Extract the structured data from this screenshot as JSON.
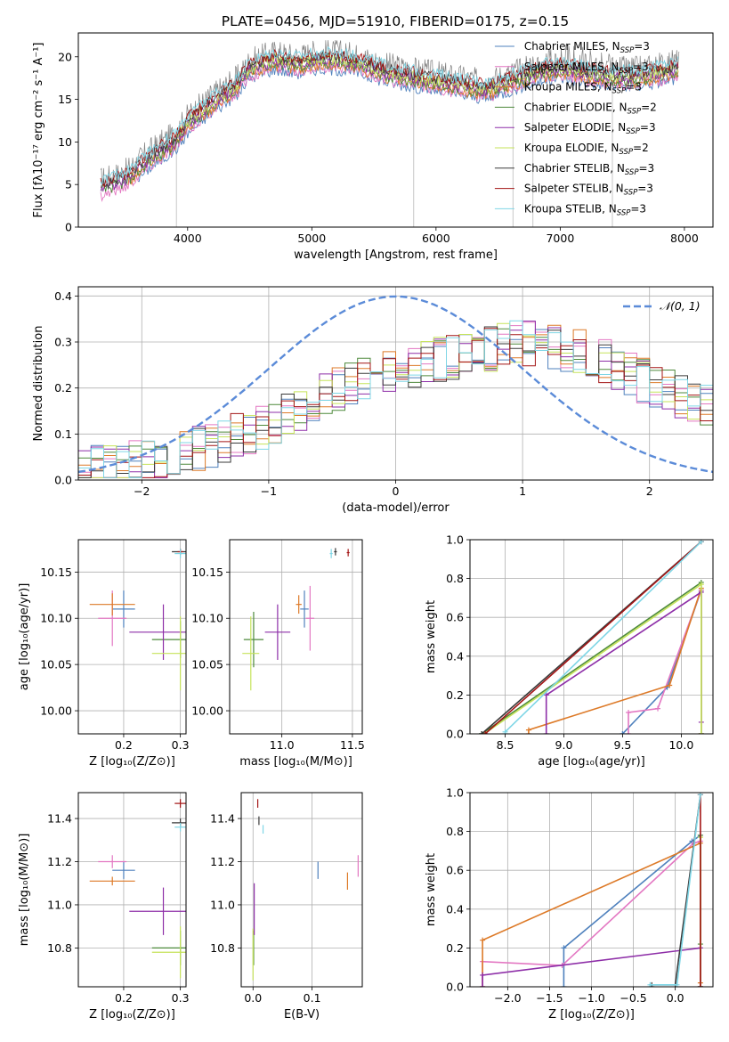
{
  "figure": {
    "title": "PLATE=0456, MJD=51910, FIBERID=0175, z=0.15"
  },
  "model_colors": {
    "Chabrier MILES": "#4f81bd",
    "Salpeter MILES": "#e377c2",
    "Kroupa MILES": "#dd7a28",
    "Chabrier ELODIE": "#4e8a3c",
    "Salpeter ELODIE": "#8e2fa8",
    "Kroupa ELODIE": "#c6e35a",
    "Chabrier STELIB": "#3a3a3a",
    "Salpeter STELIB": "#a31515",
    "Kroupa STELIB": "#7fd6e6",
    "data": "#808080",
    "gaussian": "#5b8bd8"
  },
  "chart_data": [
    {
      "id": "spectrum",
      "type": "line",
      "title": "PLATE=0456, MJD=51910, FIBERID=0175, z=0.15",
      "xlabel": "wavelength [Angstrom, rest frame]",
      "ylabel": "Flux [fλ10⁻¹⁷ erg cm⁻² s⁻¹ A⁻¹]",
      "xlim": [
        3120,
        8230
      ],
      "ylim": [
        0,
        22.8
      ],
      "xticks": [
        4000,
        5000,
        6000,
        7000,
        8000
      ],
      "yticks": [
        0,
        5,
        10,
        15,
        20
      ],
      "grid": false,
      "legend_position": "top-right",
      "legend": [
        {
          "model": "Chabrier MILES",
          "label": "Chabrier MILES, N",
          "sub": "SSP",
          "tail": "=3"
        },
        {
          "model": "Salpeter MILES",
          "label": "Salpeter MILES, N",
          "sub": "SSP",
          "tail": "=3"
        },
        {
          "model": "Kroupa MILES",
          "label": "Kroupa MILES, N",
          "sub": "SSP",
          "tail": "=3"
        },
        {
          "model": "Chabrier ELODIE",
          "label": "Chabrier ELODIE, N",
          "sub": "SSP",
          "tail": "=2"
        },
        {
          "model": "Salpeter ELODIE",
          "label": "Salpeter ELODIE, N",
          "sub": "SSP",
          "tail": "=3"
        },
        {
          "model": "Kroupa ELODIE",
          "label": "Kroupa ELODIE, N",
          "sub": "SSP",
          "tail": "=2"
        },
        {
          "model": "Chabrier STELIB",
          "label": "Chabrier STELIB, N",
          "sub": "SSP",
          "tail": "=3"
        },
        {
          "model": "Salpeter STELIB",
          "label": "Salpeter STELIB, N",
          "sub": "SSP",
          "tail": "=3"
        },
        {
          "model": "Kroupa STELIB",
          "label": "Kroupa STELIB, N",
          "sub": "SSP",
          "tail": "=3"
        }
      ],
      "data_envelope": {
        "x": [
          3300,
          3500,
          3700,
          3900,
          4000,
          4200,
          4400,
          4500,
          4700,
          4900,
          5000,
          5200,
          5400,
          5600,
          5800,
          6000,
          6200,
          6400,
          6600,
          6800,
          7000,
          7200,
          7400,
          7600,
          7800,
          7950
        ],
        "y": [
          5.5,
          6.5,
          9.0,
          11.0,
          13.0,
          15.5,
          17.5,
          19.5,
          20.5,
          20.0,
          20.5,
          20.5,
          20.0,
          19.0,
          18.5,
          18.0,
          17.5,
          17.0,
          18.0,
          19.0,
          19.5,
          19.0,
          18.5,
          18.5,
          19.0,
          19.5
        ]
      },
      "data_dropouts_x": [
        3910,
        5820,
        6620,
        6780,
        7420
      ]
    },
    {
      "id": "residuals",
      "type": "step",
      "xlabel": "(data-model)/error",
      "ylabel": "Normed distribution",
      "xlim": [
        -2.5,
        2.5
      ],
      "ylim": [
        0,
        0.42
      ],
      "xticks": [
        -2,
        -1,
        0,
        1,
        2
      ],
      "yticks": [
        0.0,
        0.1,
        0.2,
        0.3,
        0.4
      ],
      "grid": true,
      "legend_position": "top-right",
      "gaussian_label": "𝒩(0, 1)",
      "bin_width": 0.1,
      "envelope": {
        "x": [
          -2.5,
          -2.0,
          -1.5,
          -1.0,
          -0.5,
          0.0,
          0.5,
          1.0,
          1.5,
          2.0,
          2.5
        ],
        "y": [
          0.02,
          0.04,
          0.07,
          0.12,
          0.19,
          0.24,
          0.27,
          0.3,
          0.28,
          0.21,
          0.16
        ]
      }
    },
    {
      "id": "age-vs-Z",
      "type": "errorbar",
      "xlabel": "Z [log₁₀(Z/Z⊙)]",
      "ylabel": "age  [log₁₀(age/yr)]",
      "xlim": [
        0.12,
        0.31
      ],
      "ylim": [
        9.975,
        10.185
      ],
      "xticks": [
        0.2,
        0.3
      ],
      "yticks": [
        10.0,
        10.05,
        10.1,
        10.15
      ],
      "grid": true,
      "points": [
        {
          "model": "Chabrier MILES",
          "x": 0.2,
          "y": 10.11,
          "xerr": 0.02,
          "yerr": 0.02
        },
        {
          "model": "Salpeter MILES",
          "x": 0.18,
          "y": 10.1,
          "xerr": 0.025,
          "yerr": 0.03
        },
        {
          "model": "Kroupa MILES",
          "x": 0.18,
          "y": 10.115,
          "xerr": 0.04,
          "yerr": 0.012
        },
        {
          "model": "Chabrier ELODIE",
          "x": 0.3,
          "y": 10.077,
          "xerr": 0.05,
          "yerr": 0.02
        },
        {
          "model": "Salpeter ELODIE",
          "x": 0.27,
          "y": 10.085,
          "xerr": 0.06,
          "yerr": 0.03
        },
        {
          "model": "Kroupa ELODIE",
          "x": 0.3,
          "y": 10.062,
          "xerr": 0.05,
          "yerr": 0.04
        },
        {
          "model": "Chabrier STELIB",
          "x": 0.3,
          "y": 10.172,
          "xerr": 0.015,
          "yerr": 0.003
        },
        {
          "model": "Salpeter STELIB",
          "x": 0.3,
          "y": 10.172,
          "xerr": 0.005,
          "yerr": 0.003
        },
        {
          "model": "Kroupa STELIB",
          "x": 0.3,
          "y": 10.17,
          "xerr": 0.01,
          "yerr": 0.005
        }
      ]
    },
    {
      "id": "age-vs-mass",
      "type": "errorbar",
      "xlabel": "mass [log₁₀(M/M⊙)]",
      "xlim": [
        10.63,
        11.57
      ],
      "ylim": [
        9.975,
        10.185
      ],
      "xticks": [
        11.0,
        11.5
      ],
      "yticks": [
        10.0,
        10.05,
        10.1,
        10.15
      ],
      "grid": true,
      "points": [
        {
          "model": "Chabrier MILES",
          "x": 11.16,
          "y": 10.11,
          "xerr": 0.03,
          "yerr": 0.02
        },
        {
          "model": "Salpeter MILES",
          "x": 11.2,
          "y": 10.1,
          "xerr": 0.03,
          "yerr": 0.035
        },
        {
          "model": "Kroupa MILES",
          "x": 11.12,
          "y": 10.115,
          "xerr": 0.02,
          "yerr": 0.01
        },
        {
          "model": "Chabrier ELODIE",
          "x": 10.8,
          "y": 10.077,
          "xerr": 0.07,
          "yerr": 0.03
        },
        {
          "model": "Salpeter ELODIE",
          "x": 10.97,
          "y": 10.085,
          "xerr": 0.09,
          "yerr": 0.03
        },
        {
          "model": "Kroupa ELODIE",
          "x": 10.78,
          "y": 10.062,
          "xerr": 0.06,
          "yerr": 0.04
        },
        {
          "model": "Chabrier STELIB",
          "x": 11.38,
          "y": 10.172,
          "xerr": 0.01,
          "yerr": 0.004
        },
        {
          "model": "Salpeter STELIB",
          "x": 11.47,
          "y": 10.171,
          "xerr": 0.01,
          "yerr": 0.004
        },
        {
          "model": "Kroupa STELIB",
          "x": 11.35,
          "y": 10.17,
          "xerr": 0.01,
          "yerr": 0.005
        }
      ]
    },
    {
      "id": "age-cumulative",
      "type": "line",
      "xlabel": "age  [log₁₀(age/yr)]",
      "ylabel": "mass weight",
      "xlim": [
        8.2,
        10.27
      ],
      "ylim": [
        0,
        1.0
      ],
      "xticks": [
        8.5,
        9.0,
        9.5,
        10.0
      ],
      "yticks": [
        0.0,
        0.2,
        0.4,
        0.6,
        0.8,
        1.0
      ],
      "grid": true,
      "series": [
        {
          "model": "Chabrier MILES",
          "x": [
            9.5,
            9.5,
            9.88,
            10.17,
            10.17
          ],
          "y": [
            0.0,
            0.0,
            0.24,
            0.74,
            0.0
          ]
        },
        {
          "model": "Salpeter MILES",
          "x": [
            9.55,
            9.55,
            9.8,
            10.17,
            10.17
          ],
          "y": [
            0.0,
            0.11,
            0.13,
            0.74,
            0.0
          ]
        },
        {
          "model": "Kroupa MILES",
          "x": [
            8.7,
            8.7,
            9.9,
            10.17,
            10.17
          ],
          "y": [
            0.0,
            0.02,
            0.25,
            0.75,
            0.0
          ]
        },
        {
          "model": "Chabrier ELODIE",
          "x": [
            8.3,
            8.3,
            10.17,
            10.17
          ],
          "y": [
            0.0,
            0.0,
            0.78,
            0.0
          ]
        },
        {
          "model": "Salpeter ELODIE",
          "x": [
            8.85,
            8.85,
            10.17,
            10.17
          ],
          "y": [
            0.0,
            0.2,
            0.73,
            0.06
          ]
        },
        {
          "model": "Kroupa ELODIE",
          "x": [
            8.32,
            8.32,
            10.17,
            10.17
          ],
          "y": [
            0.0,
            0.0,
            0.77,
            0.0
          ]
        },
        {
          "model": "Chabrier STELIB",
          "x": [
            8.3,
            8.3,
            10.17
          ],
          "y": [
            0.0,
            0.0,
            0.99
          ]
        },
        {
          "model": "Salpeter STELIB",
          "x": [
            8.33,
            8.33,
            10.17
          ],
          "y": [
            0.0,
            0.0,
            0.99
          ]
        },
        {
          "model": "Kroupa STELIB",
          "x": [
            8.5,
            8.5,
            10.17
          ],
          "y": [
            0.0,
            0.01,
            0.99
          ]
        }
      ]
    },
    {
      "id": "mass-vs-Z",
      "type": "errorbar",
      "xlabel": "Z [log₁₀(Z/Z⊙)]",
      "ylabel": "mass [log₁₀(M/M⊙)]",
      "xlim": [
        0.12,
        0.31
      ],
      "ylim": [
        10.62,
        11.52
      ],
      "xticks": [
        0.2,
        0.3
      ],
      "yticks": [
        10.8,
        11.0,
        11.2,
        11.4
      ],
      "grid": true,
      "points": [
        {
          "model": "Chabrier MILES",
          "x": 0.2,
          "y": 11.16,
          "xerr": 0.02,
          "yerr": 0.04
        },
        {
          "model": "Salpeter MILES",
          "x": 0.18,
          "y": 11.2,
          "xerr": 0.025,
          "yerr": 0.03
        },
        {
          "model": "Kroupa MILES",
          "x": 0.18,
          "y": 11.11,
          "xerr": 0.04,
          "yerr": 0.02
        },
        {
          "model": "Chabrier ELODIE",
          "x": 0.3,
          "y": 10.8,
          "xerr": 0.05,
          "yerr": 0.08
        },
        {
          "model": "Salpeter ELODIE",
          "x": 0.27,
          "y": 10.97,
          "xerr": 0.06,
          "yerr": 0.11
        },
        {
          "model": "Kroupa ELODIE",
          "x": 0.3,
          "y": 10.78,
          "xerr": 0.05,
          "yerr": 0.12
        },
        {
          "model": "Chabrier STELIB",
          "x": 0.3,
          "y": 11.38,
          "xerr": 0.015,
          "yerr": 0.02
        },
        {
          "model": "Salpeter STELIB",
          "x": 0.3,
          "y": 11.47,
          "xerr": 0.01,
          "yerr": 0.02
        },
        {
          "model": "Kroupa STELIB",
          "x": 0.3,
          "y": 11.36,
          "xerr": 0.01,
          "yerr": 0.02
        }
      ]
    },
    {
      "id": "mass-vs-ebv",
      "type": "errorbar",
      "xlabel": "E(B-V)",
      "xlim": [
        -0.02,
        0.185
      ],
      "ylim": [
        10.62,
        11.52
      ],
      "xticks": [
        0.0,
        0.1
      ],
      "yticks": [
        10.8,
        11.0,
        11.2,
        11.4
      ],
      "grid": true,
      "points": [
        {
          "model": "Chabrier MILES",
          "x": 0.11,
          "y": 11.16,
          "xerr": 0.0,
          "yerr": 0.04
        },
        {
          "model": "Salpeter MILES",
          "x": 0.178,
          "y": 11.18,
          "xerr": 0.0,
          "yerr": 0.05
        },
        {
          "model": "Kroupa MILES",
          "x": 0.16,
          "y": 11.11,
          "xerr": 0.0,
          "yerr": 0.04
        },
        {
          "model": "Chabrier ELODIE",
          "x": 0.001,
          "y": 10.8,
          "xerr": 0.0,
          "yerr": 0.08
        },
        {
          "model": "Salpeter ELODIE",
          "x": 0.002,
          "y": 10.98,
          "xerr": 0.0,
          "yerr": 0.12
        },
        {
          "model": "Kroupa ELODIE",
          "x": 0.0,
          "y": 10.77,
          "xerr": 0.0,
          "yerr": 0.12
        },
        {
          "model": "Chabrier STELIB",
          "x": 0.01,
          "y": 11.39,
          "xerr": 0.0,
          "yerr": 0.02
        },
        {
          "model": "Salpeter STELIB",
          "x": 0.008,
          "y": 11.47,
          "xerr": 0.0,
          "yerr": 0.02
        },
        {
          "model": "Kroupa STELIB",
          "x": 0.017,
          "y": 11.35,
          "xerr": 0.0,
          "yerr": 0.02
        }
      ]
    },
    {
      "id": "Z-cumulative",
      "type": "line",
      "xlabel": "Z [log₁₀(Z/Z⊙)]",
      "ylabel": "mass weight",
      "xlim": [
        -2.45,
        0.45
      ],
      "ylim": [
        0,
        1.0
      ],
      "xticks": [
        -2.0,
        -1.5,
        -1.0,
        -0.5,
        0.0
      ],
      "yticks": [
        0.0,
        0.2,
        0.4,
        0.6,
        0.8,
        1.0
      ],
      "grid": true,
      "series": [
        {
          "model": "Chabrier MILES",
          "x": [
            -1.33,
            -1.33,
            0.2,
            0.3,
            0.3
          ],
          "y": [
            0.0,
            0.2,
            0.75,
            0.78,
            0.0
          ]
        },
        {
          "model": "Salpeter MILES",
          "x": [
            -2.3,
            -2.3,
            -1.35,
            0.22,
            0.3,
            0.3
          ],
          "y": [
            0.0,
            0.13,
            0.11,
            0.74,
            0.75,
            0.0
          ]
        },
        {
          "model": "Kroupa MILES",
          "x": [
            -2.3,
            -2.3,
            0.3,
            0.3
          ],
          "y": [
            0.0,
            0.24,
            0.74,
            0.02
          ]
        },
        {
          "model": "Chabrier ELODIE",
          "x": [
            0.3,
            0.3,
            0.3
          ],
          "y": [
            0.0,
            0.22,
            0.78
          ]
        },
        {
          "model": "Salpeter ELODIE",
          "x": [
            -2.3,
            -2.3,
            0.3,
            0.3
          ],
          "y": [
            0.0,
            0.06,
            0.2,
            0.0
          ]
        },
        {
          "model": "Kroupa ELODIE",
          "x": [
            0.3,
            0.3
          ],
          "y": [
            0.0,
            0.77
          ]
        },
        {
          "model": "Chabrier STELIB",
          "x": [
            -0.28,
            -0.28,
            0.0,
            0.3
          ],
          "y": [
            0.0,
            0.01,
            0.01,
            0.99
          ]
        },
        {
          "model": "Salpeter STELIB",
          "x": [
            0.3,
            0.3
          ],
          "y": [
            0.0,
            0.99
          ]
        },
        {
          "model": "Kroupa STELIB",
          "x": [
            -0.3,
            -0.3,
            0.02,
            0.3
          ],
          "y": [
            0.0,
            0.01,
            0.01,
            0.99
          ]
        }
      ]
    }
  ]
}
